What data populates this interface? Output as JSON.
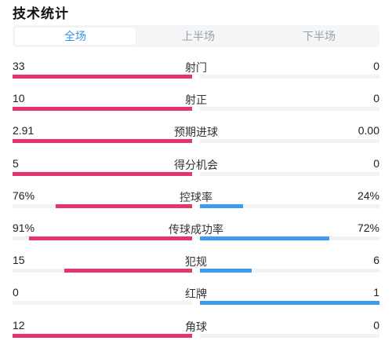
{
  "header": {
    "title": "技术统计"
  },
  "tabs": [
    {
      "label": "全场",
      "active": true
    },
    {
      "label": "上半场",
      "active": false
    },
    {
      "label": "下半场",
      "active": false
    }
  ],
  "colors": {
    "home": "#e5336b",
    "away": "#3d9bf0",
    "active_tab": "#3b8ee8"
  },
  "stats": [
    {
      "name": "射门",
      "left": "33",
      "right": "0",
      "left_fill": 1.0,
      "right_fill": 0.0
    },
    {
      "name": "射正",
      "left": "10",
      "right": "0",
      "left_fill": 1.0,
      "right_fill": 0.0
    },
    {
      "name": "预期进球",
      "left": "2.91",
      "right": "0.00",
      "left_fill": 1.0,
      "right_fill": 0.0
    },
    {
      "name": "得分机会",
      "left": "5",
      "right": "0",
      "left_fill": 1.0,
      "right_fill": 0.0
    },
    {
      "name": "控球率",
      "left": "76%",
      "right": "24%",
      "left_fill": 0.76,
      "right_fill": 0.24
    },
    {
      "name": "传球成功率",
      "left": "91%",
      "right": "72%",
      "left_fill": 0.91,
      "right_fill": 0.72
    },
    {
      "name": "犯规",
      "left": "15",
      "right": "6",
      "left_fill": 0.71,
      "right_fill": 0.29
    },
    {
      "name": "红牌",
      "left": "0",
      "right": "1",
      "left_fill": 0.0,
      "right_fill": 1.0
    },
    {
      "name": "角球",
      "left": "12",
      "right": "0",
      "left_fill": 1.0,
      "right_fill": 0.0
    }
  ]
}
